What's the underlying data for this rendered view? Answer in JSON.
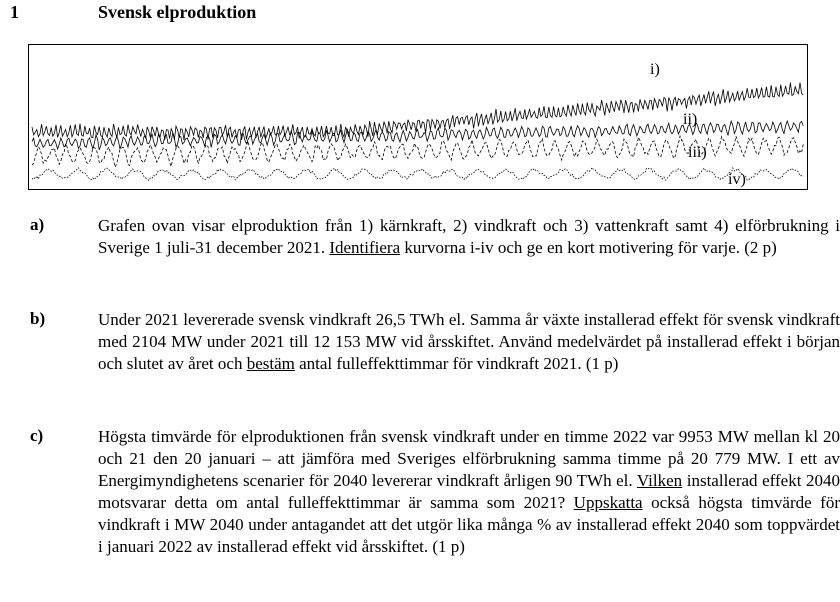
{
  "heading": {
    "number": "1",
    "title": "Svensk elproduktion"
  },
  "graph": {
    "labels": [
      "i)",
      "ii)",
      "iii)",
      "iv)"
    ]
  },
  "questions": [
    {
      "label": "a)",
      "parts": [
        {
          "t": "Grafen ovan visar elproduktion från 1) kärnkraft, 2) vindkraft och 3) vattenkraft samt 4) elförbrukning i Sverige 1 juli-31 december 2021. "
        },
        {
          "t": "Identifiera",
          "u": true
        },
        {
          "t": " kurvorna i-iv och ge en kort motivering för varje. (2 p)"
        }
      ]
    },
    {
      "label": "b)",
      "parts": [
        {
          "t": "Under 2021 levererade svensk vindkraft 26,5 TWh el. Samma år växte installerad effekt för svensk vindkraft med 2104 MW under 2021 till 12 153 MW vid årsskiftet. Använd medelvärdet på installerad effekt i början och slutet av året och "
        },
        {
          "t": "bestäm",
          "u": true
        },
        {
          "t": " antal fulleffekttimmar för vindkraft 2021. (1 p)"
        }
      ]
    },
    {
      "label": "c)",
      "parts": [
        {
          "t": "Högsta timvärde för elproduktionen från svensk vindkraft under en timme 2022 var 9953 MW mellan kl 20 och 21 den 20 januari – att jämföra med Sveriges elförbrukning samma timme på 20 779 MW. I ett av Energimyndighetens scenarier för 2040 levererar vindkraft årligen 90 TWh el. "
        },
        {
          "t": "Vilken",
          "u": true
        },
        {
          "t": " installerad effekt 2040 motsvarar detta om antal fulleffekttimmar är samma som 2021? "
        },
        {
          "t": "Uppskatta",
          "u": true
        },
        {
          "t": " också högsta timvärde för vindkraft i MW 2040 under antagandet att det utgör lika många % av installerad effekt 2040 som toppvärdet i januari 2022 av installerad effekt vid årsskiftet. (1 p)"
        }
      ]
    }
  ]
}
